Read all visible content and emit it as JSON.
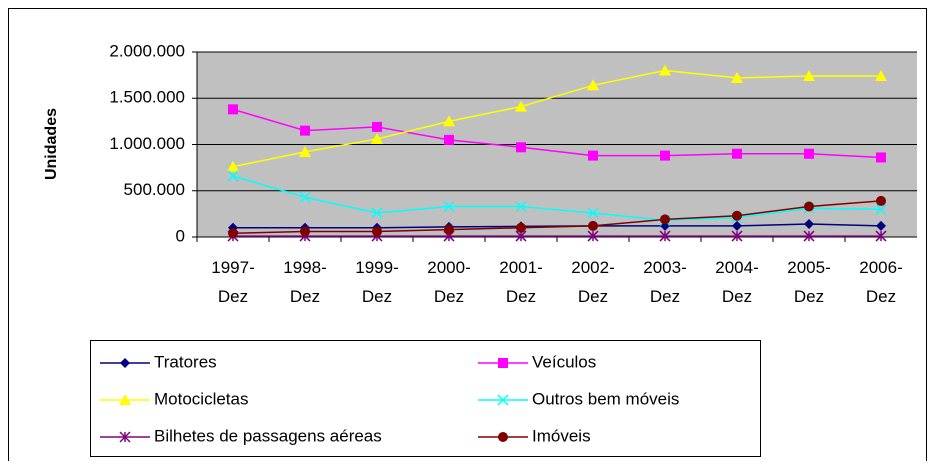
{
  "chart_data": {
    "type": "line",
    "y_label": "Unidades",
    "categories": [
      "1997-\nDez",
      "1998-\nDez",
      "1999-\nDez",
      "2000-\nDez",
      "2001-\nDez",
      "2002-\nDez",
      "2003-\nDez",
      "2004-\nDez",
      "2005-\nDez",
      "2006-\nDez"
    ],
    "series": [
      {
        "name": "Tratores",
        "color": "#000080",
        "marker": "diamond",
        "values": [
          100000,
          100000,
          100000,
          110000,
          115000,
          120000,
          120000,
          120000,
          140000,
          120000
        ]
      },
      {
        "name": "Veículos",
        "color": "#ff00ff",
        "marker": "square",
        "values": [
          1380000,
          1150000,
          1190000,
          1050000,
          970000,
          880000,
          880000,
          900000,
          900000,
          860000
        ]
      },
      {
        "name": "Motocicletas",
        "color": "#ffff00",
        "marker": "triangle",
        "values": [
          760000,
          920000,
          1060000,
          1250000,
          1410000,
          1640000,
          1800000,
          1720000,
          1740000,
          1740000
        ]
      },
      {
        "name": "Outros bem móveis",
        "color": "#00ffff",
        "marker": "x",
        "values": [
          660000,
          430000,
          260000,
          330000,
          330000,
          260000,
          180000,
          210000,
          310000,
          300000
        ]
      },
      {
        "name": "Bilhetes de passagens aéreas",
        "color": "#800080",
        "marker": "star",
        "values": [
          10000,
          10000,
          10000,
          10000,
          10000,
          10000,
          10000,
          10000,
          10000,
          10000
        ]
      },
      {
        "name": "Imóveis",
        "color": "#800000",
        "marker": "circle",
        "values": [
          40000,
          60000,
          60000,
          80000,
          100000,
          120000,
          190000,
          230000,
          330000,
          390000
        ]
      }
    ],
    "ylim": [
      0,
      2000000
    ],
    "yticks": [
      0,
      {
        "value": 500000,
        "label": "500.000"
      },
      {
        "value": 1000000,
        "label": "1.000.000"
      },
      {
        "value": 1500000,
        "label": "1.500.000"
      },
      {
        "value": 2000000,
        "label": "2.000.000"
      }
    ],
    "grid": true,
    "plot_background": "#c0c0c0",
    "legend": "bottom"
  }
}
